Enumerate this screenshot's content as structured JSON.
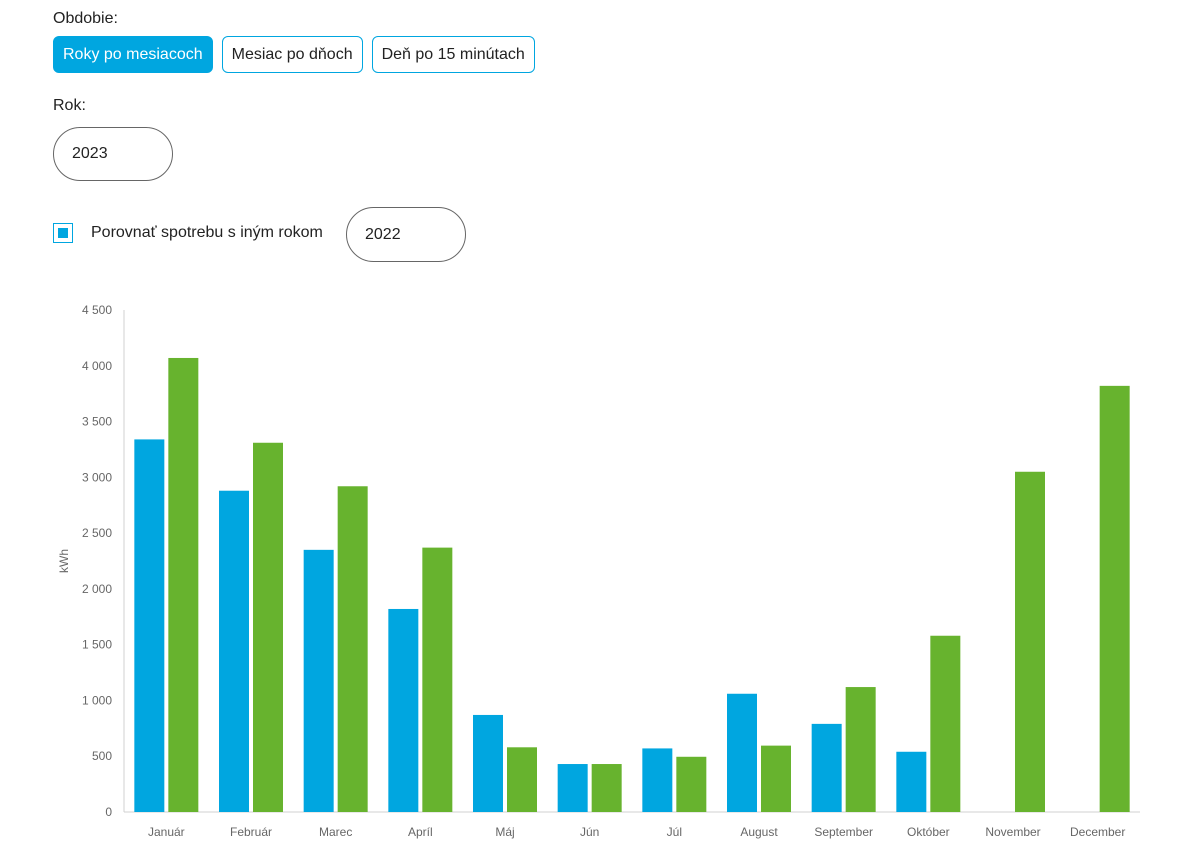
{
  "period": {
    "label": "Obdobie:",
    "options": [
      "Roky po mesiacoch",
      "Mesiac po dňoch",
      "Deň po 15 minútach"
    ],
    "selected_index": 0
  },
  "year": {
    "label": "Rok:",
    "value": "2023"
  },
  "compare": {
    "checked": true,
    "label": "Porovnať spotrebu s iným rokom",
    "value": "2022"
  },
  "colors": {
    "accent": "#00a6e0",
    "series_2023": "#00a6e0",
    "series_2022": "#67b32e"
  },
  "chart_data": {
    "type": "bar",
    "title": "",
    "xlabel": "",
    "ylabel": "kWh",
    "ylim": [
      0,
      4500
    ],
    "yticks": [
      0,
      500,
      1000,
      1500,
      2000,
      2500,
      3000,
      3500,
      4000,
      4500
    ],
    "ytick_labels": [
      "0",
      "500",
      "1 000",
      "1 500",
      "2 000",
      "2 500",
      "3 000",
      "3 500",
      "4 000",
      "4 500"
    ],
    "categories": [
      "Január",
      "Február",
      "Marec",
      "Apríl",
      "Máj",
      "Jún",
      "Júl",
      "August",
      "September",
      "Október",
      "November",
      "December"
    ],
    "series": [
      {
        "color": "#00a6e0",
        "values": [
          3340,
          2880,
          2350,
          1820,
          870,
          430,
          570,
          1060,
          790,
          540,
          null,
          null
        ]
      },
      {
        "color": "#67b32e",
        "values": [
          4070,
          3310,
          2920,
          2370,
          580,
          430,
          495,
          595,
          1120,
          1580,
          3050,
          3820
        ]
      }
    ],
    "grid": false,
    "legend": "none"
  }
}
